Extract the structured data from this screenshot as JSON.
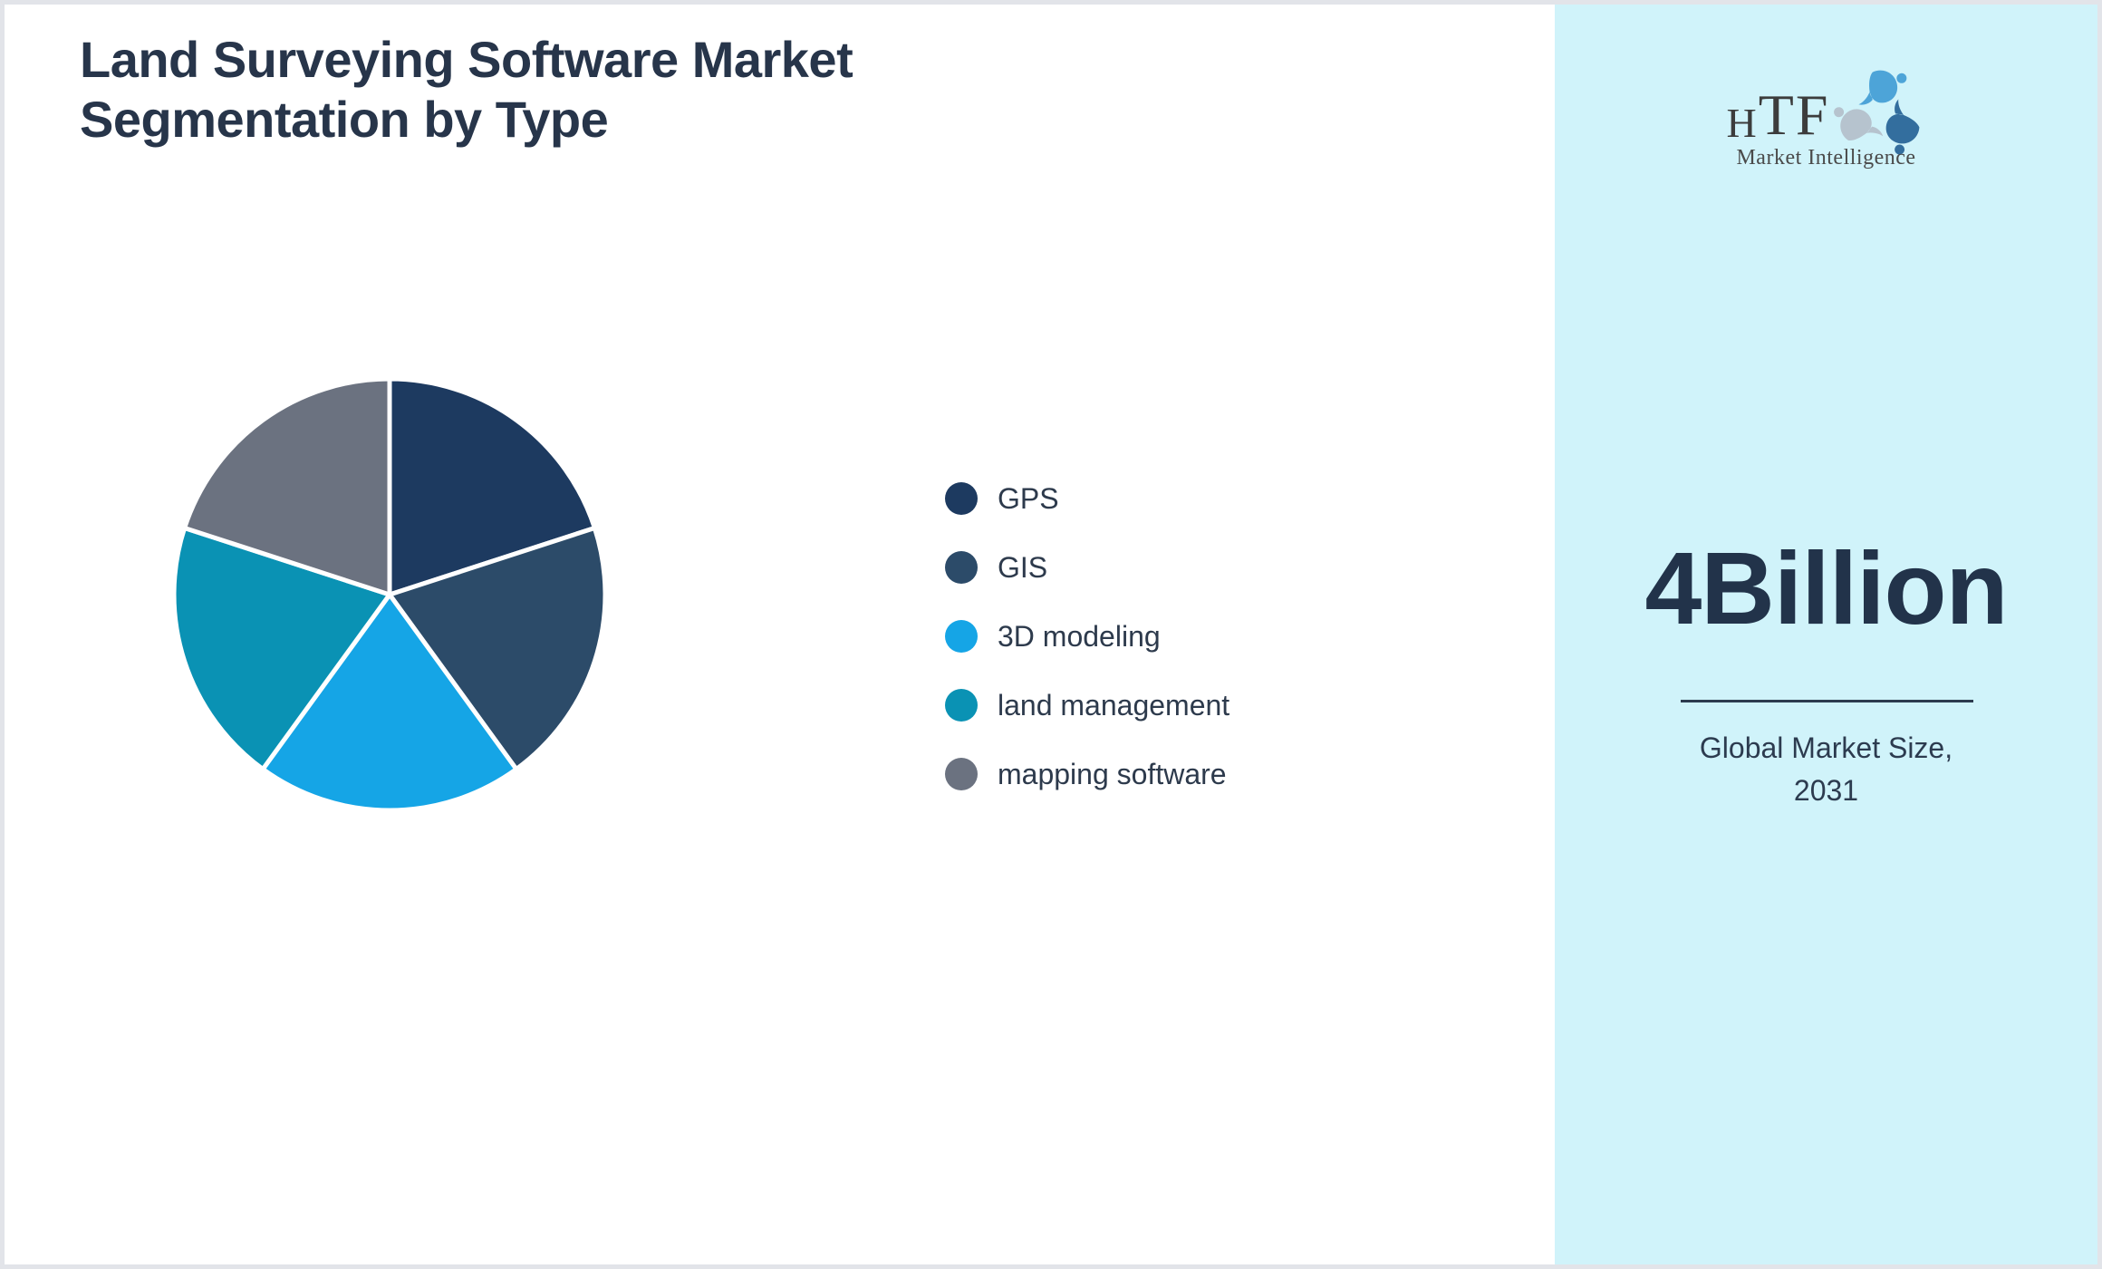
{
  "page": {
    "background": "#ffffff",
    "border_color": "#e2e4e9"
  },
  "header": {
    "title_line1": "Land Surveying Software Market",
    "title_line2": "Segmentation by Type",
    "title_color": "#27354a"
  },
  "chart_data": {
    "type": "pie",
    "title": "Land Surveying Software Market Segmentation by Type",
    "labels": [
      "GPS",
      "GIS",
      "3D modeling",
      "land management",
      "mapping software"
    ],
    "values": [
      20,
      20,
      20,
      20,
      20
    ],
    "colors": [
      "#1d3a60",
      "#2c4b69",
      "#15a5e6",
      "#0a92b4",
      "#6b7280"
    ],
    "start_angle": "12 o'clock",
    "direction": "clockwise",
    "slice_gap_color": "#ffffff",
    "legend_position": "right",
    "legend_text_color": "#2d3a4c"
  },
  "sidebar": {
    "background": "#d0f3fa",
    "logo": {
      "brand_h": "H",
      "brand_tf": "TF",
      "tagline": "Market Intelligence",
      "icon": "dolphins-swirl-icon",
      "icon_colors": {
        "light_blue": "#4da4d8",
        "steel_blue": "#336e9e",
        "gray": "#b6c3ce"
      }
    },
    "market_size_value": "4Billion",
    "caption_line1": "Global Market Size,",
    "caption_line2": "2031",
    "text_color": "#22334a"
  }
}
